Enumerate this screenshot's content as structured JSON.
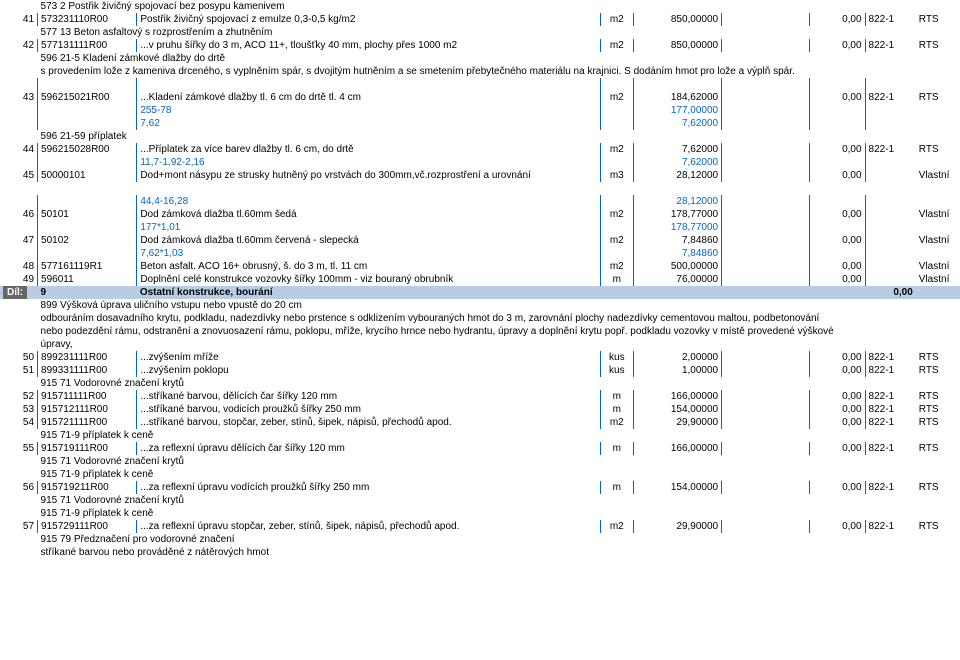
{
  "rows": [
    {
      "type": "header",
      "c1": "",
      "c2": "573 2 Postřik živičný spojovací bez posypu kamenivem"
    },
    {
      "type": "item",
      "c0": "41",
      "c1": "573231110R00",
      "c2": "Postřik živičný spojovací z emulze 0,3-0,5 kg/m2",
      "c3": "m2",
      "c4": "850,00000",
      "c5": "",
      "c6": "0,00",
      "c7": "822-1",
      "c8": "RTS"
    },
    {
      "type": "header",
      "c1": "",
      "c2": "577 13 Beton asfaltový s rozprostřením a zhutněním"
    },
    {
      "type": "item",
      "c0": "42",
      "c1": "577131111R00",
      "c2": "...v pruhu šířky do 3 m, ACO 11+, tloušťky 40 mm, plochy přes 1000 m2",
      "c3": "m2",
      "c4": "850,00000",
      "c5": "",
      "c6": "0,00",
      "c7": "822-1",
      "c8": "RTS"
    },
    {
      "type": "header",
      "c1": "",
      "c2": "596 21-5 Kladení zámkové dlažby do drtě"
    },
    {
      "type": "header",
      "c1": "",
      "c2": "s provedením lože z kameniva drceného, s vyplněním spár, s dvojitým hutněním a se smetením přebytečného materiálu na krajnici. S dodáním hmot pro lože a výplň spár."
    },
    {
      "type": "blank"
    },
    {
      "type": "item",
      "c0": "43",
      "c1": "596215021R00",
      "c2": "...Kladení zámkové dlažby tl. 6 cm do drtě tl. 4 cm",
      "c3": "m2",
      "c4": "184,62000",
      "c5": "",
      "c6": "0,00",
      "c7": "822-1",
      "c8": "RTS"
    },
    {
      "type": "calc",
      "c2": "255-78",
      "c4": "177,00000"
    },
    {
      "type": "calc",
      "c2": "7,62",
      "c4": "7,62000"
    },
    {
      "type": "header",
      "c1": "",
      "c2": "596 21-59 příplatek"
    },
    {
      "type": "item",
      "c0": "44",
      "c1": "596215028R00",
      "c2": "...Příplatek za více barev dlažby tl. 6 cm, do drtě",
      "c3": "m2",
      "c4": "7,62000",
      "c5": "",
      "c6": "0,00",
      "c7": "822-1",
      "c8": "RTS"
    },
    {
      "type": "calc",
      "c2": "11,7-1,92-2,16",
      "c4": "7,62000"
    },
    {
      "type": "item",
      "c0": "45",
      "c1": "50000101",
      "c2": "Dod+mont násypu ze strusky hutněný po vrstvách do 300mm,vč.rozprostření a urovnání",
      "c3": "m3",
      "c4": "28,12000",
      "c5": "",
      "c6": "0,00",
      "c7": "",
      "c8": "Vlastní"
    },
    {
      "type": "blank2"
    },
    {
      "type": "calc",
      "c2": "44,4-16,28",
      "c4": "28,12000"
    },
    {
      "type": "item",
      "c0": "46",
      "c1": "50101",
      "c2": "Dod zámková dlažba tl.60mm šedá",
      "c3": "m2",
      "c4": "178,77000",
      "c5": "",
      "c6": "0,00",
      "c7": "",
      "c8": "Vlastní"
    },
    {
      "type": "calc",
      "c2": "177*1,01",
      "c4": "178,77000"
    },
    {
      "type": "item",
      "c0": "47",
      "c1": "50102",
      "c2": "Dod zámková dlažba tl.60mm červená - slepecká",
      "c3": "m2",
      "c4": "7,84860",
      "c5": "",
      "c6": "0,00",
      "c7": "",
      "c8": "Vlastní"
    },
    {
      "type": "calc",
      "c2": "7,62*1,03",
      "c4": "7,84860"
    },
    {
      "type": "item",
      "c0": "48",
      "c1": "577161119R1",
      "c2": "Beton asfalt. ACO 16+ obrusný, š. do 3 m, tl. 11 cm",
      "c3": "m2",
      "c4": "500,00000",
      "c5": "",
      "c6": "0,00",
      "c7": "",
      "c8": "Vlastní"
    },
    {
      "type": "item",
      "c0": "49",
      "c1": "596011",
      "c2": "Doplnění celé konstrukce vozovky šířky 100mm - viz bouraný obrubník",
      "c3": "m",
      "c4": "76,00000",
      "c5": "",
      "c6": "0,00",
      "c7": "",
      "c8": "Vlastní"
    },
    {
      "type": "section",
      "dil": "Díl:",
      "c1": "9",
      "c2": "Ostatní konstrukce, bourání",
      "amount": "0,00"
    },
    {
      "type": "header",
      "c1": "",
      "c2": "899 Výšková úprava uličního vstupu nebo vpustě do 20 cm"
    },
    {
      "type": "header",
      "c1": "",
      "c2": "odbouráním dosavadního krytu, podkladu, nadezdívky nebo prstence s odklizením vybouraných hmot do 3 m, zarovnání plochy nadezdívky cementovou maltou, podbetonování"
    },
    {
      "type": "header",
      "c1": "",
      "c2": "nebo podezdění rámu, odstranění a znovuosazení rámu, poklopu, mříže, krycího hrnce nebo hydrantu, úpravy a doplnění krytu popř. podkladu vozovky v místě provedené výškové"
    },
    {
      "type": "header",
      "c1": "",
      "c2": "úpravy,"
    },
    {
      "type": "item",
      "c0": "50",
      "c1": "899231111R00",
      "c2": "...zvýšením mříže",
      "c3": "kus",
      "c4": "2,00000",
      "c5": "",
      "c6": "0,00",
      "c7": "822-1",
      "c8": "RTS"
    },
    {
      "type": "item",
      "c0": "51",
      "c1": "899331111R00",
      "c2": "...zvýšením poklopu",
      "c3": "kus",
      "c4": "1,00000",
      "c5": "",
      "c6": "0,00",
      "c7": "822-1",
      "c8": "RTS"
    },
    {
      "type": "header",
      "c1": "",
      "c2": "915 71 Vodorovné značení krytů"
    },
    {
      "type": "item",
      "c0": "52",
      "c1": "915711111R00",
      "c2": "...stříkané barvou, dělících čar šířky 120 mm",
      "c3": "m",
      "c4": "166,00000",
      "c5": "",
      "c6": "0,00",
      "c7": "822-1",
      "c8": "RTS"
    },
    {
      "type": "item",
      "c0": "53",
      "c1": "915712111R00",
      "c2": "...stříkané barvou, vodicích proužků šířky 250 mm",
      "c3": "m",
      "c4": "154,00000",
      "c5": "",
      "c6": "0,00",
      "c7": "822-1",
      "c8": "RTS"
    },
    {
      "type": "item",
      "c0": "54",
      "c1": "915721111R00",
      "c2": "...stříkané barvou, stopčar, zeber, stínů, šipek, nápisů, přechodů apod.",
      "c3": "m2",
      "c4": "29,90000",
      "c5": "",
      "c6": "0,00",
      "c7": "822-1",
      "c8": "RTS"
    },
    {
      "type": "header",
      "c1": "",
      "c2": "915 71-9 příplatek k ceně"
    },
    {
      "type": "item",
      "c0": "55",
      "c1": "915719111R00",
      "c2": "...za reflexní úpravu dělících čar šířky 120 mm",
      "c3": "m",
      "c4": "166,00000",
      "c5": "",
      "c6": "0,00",
      "c7": "822-1",
      "c8": "RTS"
    },
    {
      "type": "header",
      "c1": "",
      "c2": "915 71 Vodorovné značení krytů"
    },
    {
      "type": "header",
      "c1": "",
      "c2": "915 71-9 příplatek k ceně"
    },
    {
      "type": "item",
      "c0": "56",
      "c1": "915719211R00",
      "c2": "...za reflexní úpravu vodících proužků šířky 250 mm",
      "c3": "m",
      "c4": "154,00000",
      "c5": "",
      "c6": "0,00",
      "c7": "822-1",
      "c8": "RTS"
    },
    {
      "type": "header",
      "c1": "",
      "c2": "915 71 Vodorovné značení krytů"
    },
    {
      "type": "header",
      "c1": "",
      "c2": "915 71-9 příplatek k ceně"
    },
    {
      "type": "item",
      "c0": "57",
      "c1": "915729111R00",
      "c2": "...za reflexní úpravu stopčar, zeber, stínů, šipek, nápisů, přechodů apod.",
      "c3": "m2",
      "c4": "29,90000",
      "c5": "",
      "c6": "0,00",
      "c7": "822-1",
      "c8": "RTS"
    },
    {
      "type": "header",
      "c1": "",
      "c2": "915 79 Předznačení pro vodorovné značení"
    },
    {
      "type": "header",
      "c1": "",
      "c2": "stříkané barvou nebo prováděné z nátěrových hmot"
    }
  ]
}
